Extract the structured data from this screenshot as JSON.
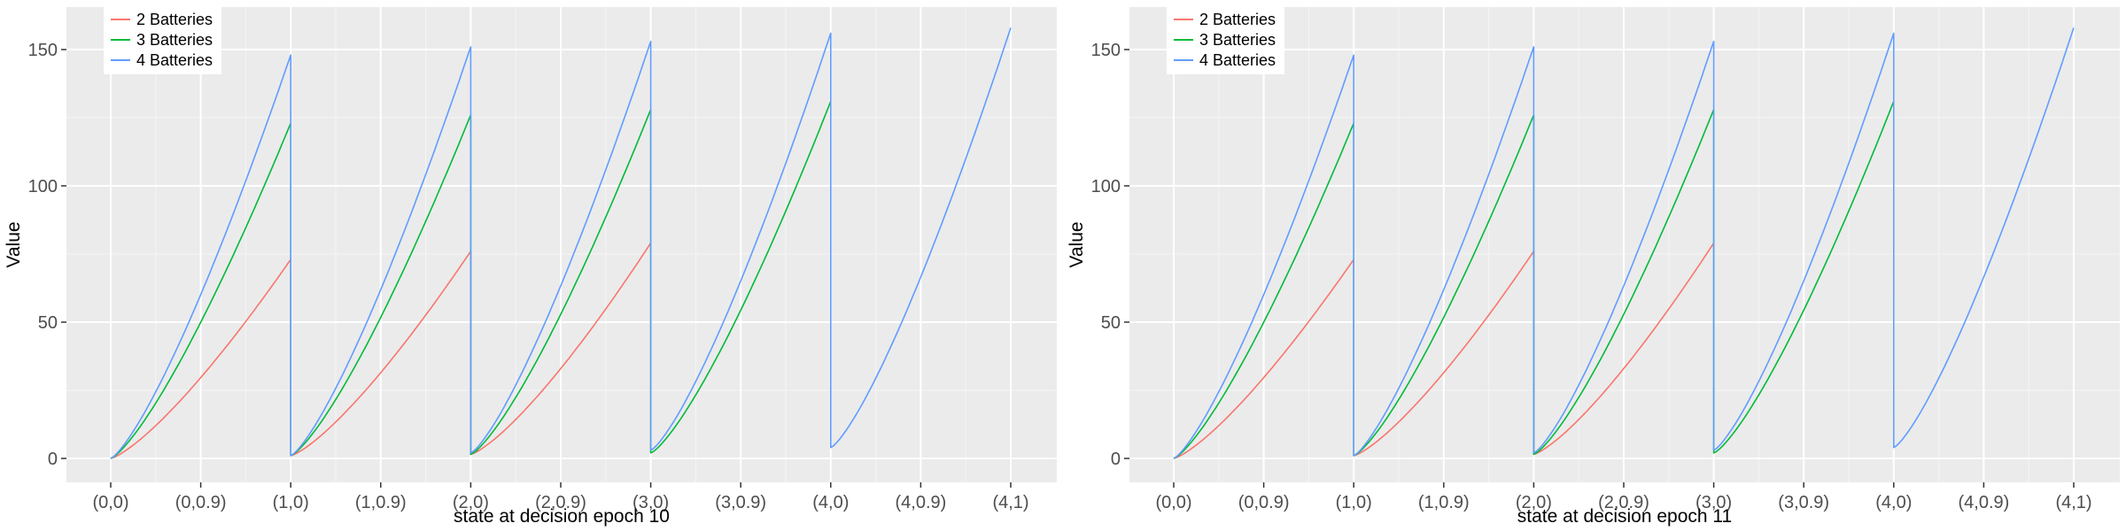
{
  "chart_data": [
    {
      "type": "line",
      "title": "",
      "xlabel": "state at decision epoch 10",
      "ylabel": "Value",
      "x_ticks": [
        "(0,0)",
        "(0,0.9)",
        "(1,0)",
        "(1,0.9)",
        "(2,0)",
        "(2,0.9)",
        "(3,0)",
        "(3,0.9)",
        "(4,0)",
        "(4,0.9)",
        "(4,1)"
      ],
      "y_ticks": [
        0,
        50,
        100,
        150
      ],
      "ylim": [
        -8,
        165
      ],
      "grid": true,
      "legend_position": "top-left",
      "series": [
        {
          "name": "2 Batteries",
          "color": "#F8766D",
          "segments": [
            {
              "start": "(0,0)",
              "end": "(1,0)",
              "y_start": 0,
              "y_end": 73
            },
            {
              "start": "(1,0)",
              "end": "(2,0)",
              "y_start": 1,
              "y_end": 76
            },
            {
              "start": "(2,0)",
              "end": "(3,0)",
              "y_start": 1.5,
              "y_end": 79
            }
          ]
        },
        {
          "name": "3 Batteries",
          "color": "#00BA38",
          "segments": [
            {
              "start": "(0,0)",
              "end": "(1,0)",
              "y_start": 0,
              "y_end": 123
            },
            {
              "start": "(1,0)",
              "end": "(2,0)",
              "y_start": 1,
              "y_end": 126
            },
            {
              "start": "(2,0)",
              "end": "(3,0)",
              "y_start": 1.5,
              "y_end": 128
            },
            {
              "start": "(3,0)",
              "end": "(4,0)",
              "y_start": 2,
              "y_end": 131
            }
          ]
        },
        {
          "name": "4 Batteries",
          "color": "#619CFF",
          "segments": [
            {
              "start": "(0,0)",
              "end": "(1,0)",
              "y_start": 0,
              "y_end": 148
            },
            {
              "start": "(1,0)",
              "end": "(2,0)",
              "y_start": 1,
              "y_end": 151
            },
            {
              "start": "(2,0)",
              "end": "(3,0)",
              "y_start": 2,
              "y_end": 153
            },
            {
              "start": "(3,0)",
              "end": "(4,0)",
              "y_start": 3,
              "y_end": 156
            },
            {
              "start": "(4,0)",
              "end": "(4,1)",
              "y_start": 4,
              "y_end": 158
            }
          ]
        }
      ]
    },
    {
      "type": "line",
      "title": "",
      "xlabel": "state at decision epoch 11",
      "ylabel": "Value",
      "x_ticks": [
        "(0,0)",
        "(0,0.9)",
        "(1,0)",
        "(1,0.9)",
        "(2,0)",
        "(2,0.9)",
        "(3,0)",
        "(3,0.9)",
        "(4,0)",
        "(4,0.9)",
        "(4,1)"
      ],
      "y_ticks": [
        0,
        50,
        100,
        150
      ],
      "ylim": [
        -8,
        165
      ],
      "grid": true,
      "legend_position": "top-left",
      "series": [
        {
          "name": "2 Batteries",
          "color": "#F8766D",
          "segments": [
            {
              "start": "(0,0)",
              "end": "(1,0)",
              "y_start": 0,
              "y_end": 73
            },
            {
              "start": "(1,0)",
              "end": "(2,0)",
              "y_start": 1,
              "y_end": 76
            },
            {
              "start": "(2,0)",
              "end": "(3,0)",
              "y_start": 1.5,
              "y_end": 79
            }
          ]
        },
        {
          "name": "3 Batteries",
          "color": "#00BA38",
          "segments": [
            {
              "start": "(0,0)",
              "end": "(1,0)",
              "y_start": 0,
              "y_end": 123
            },
            {
              "start": "(1,0)",
              "end": "(2,0)",
              "y_start": 1,
              "y_end": 126
            },
            {
              "start": "(2,0)",
              "end": "(3,0)",
              "y_start": 1.5,
              "y_end": 128
            },
            {
              "start": "(3,0)",
              "end": "(4,0)",
              "y_start": 2,
              "y_end": 131
            }
          ]
        },
        {
          "name": "4 Batteries",
          "color": "#619CFF",
          "segments": [
            {
              "start": "(0,0)",
              "end": "(1,0)",
              "y_start": 0,
              "y_end": 148
            },
            {
              "start": "(1,0)",
              "end": "(2,0)",
              "y_start": 1,
              "y_end": 151
            },
            {
              "start": "(2,0)",
              "end": "(3,0)",
              "y_start": 2,
              "y_end": 153
            },
            {
              "start": "(3,0)",
              "end": "(4,0)",
              "y_start": 3,
              "y_end": 156
            },
            {
              "start": "(4,0)",
              "end": "(4,1)",
              "y_start": 4,
              "y_end": 158
            }
          ]
        }
      ]
    }
  ]
}
